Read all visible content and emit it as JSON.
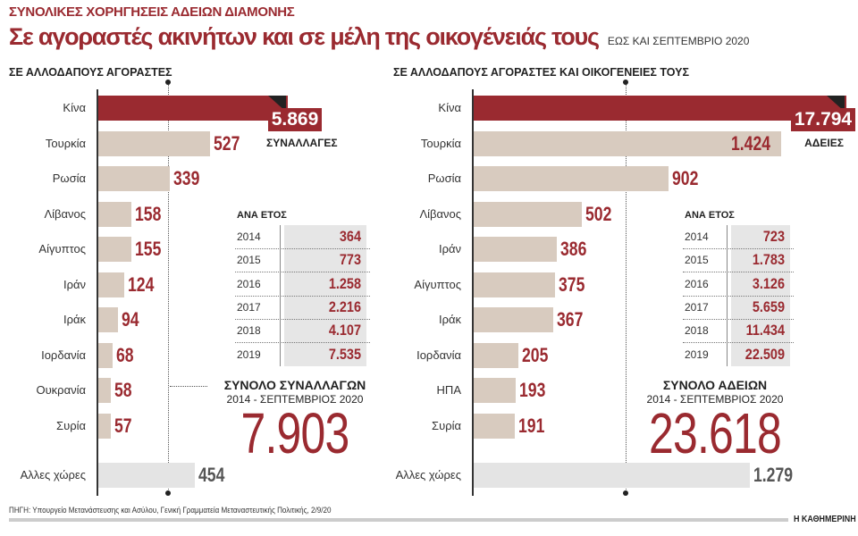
{
  "header": {
    "kicker": "ΣΥΝΟΛΙΚΕΣ ΧΟΡΗΓΗΣΕΙΣ ΑΔΕΙΩΝ ΔΙΑΜΟΝΗΣ",
    "title": "Σε αγοραστές ακινήτων και σε μέλη της οικογένειάς τους",
    "subtitle": "ΕΩΣ ΚΑΙ ΣΕΠΤΕΜΒΡΙΟ 2020"
  },
  "chart_data": [
    {
      "type": "bar",
      "orientation": "horizontal",
      "title": "ΣΕ ΑΛΛΟΔΑΠΟΥΣ ΑΓΟΡΑΣΤΕΣ",
      "unit_label": "ΣΥΝΑΛΛΑΓΕΣ",
      "categories": [
        "Κίνα",
        "Τουρκία",
        "Ρωσία",
        "Λίβανος",
        "Αίγυπτος",
        "Ιράν",
        "Ιράκ",
        "Ιορδανία",
        "Ουκρανία",
        "Συρία",
        "Αλλες χώρες"
      ],
      "values": [
        5869,
        527,
        339,
        158,
        155,
        124,
        94,
        68,
        58,
        57,
        454
      ],
      "value_labels": [
        "5.869",
        "527",
        "339",
        "158",
        "155",
        "124",
        "94",
        "68",
        "58",
        "57",
        "454"
      ],
      "by_year": {
        "header": "ΑΝΑ ΕΤΟΣ",
        "years": [
          "2014",
          "2015",
          "2016",
          "2017",
          "2018",
          "2019"
        ],
        "values": [
          "364",
          "773",
          "1.258",
          "2.216",
          "4.107",
          "7.535"
        ]
      },
      "total": {
        "label": "ΣΥΝΟΛΟ ΣΥΝΑΛΛΑΓΩΝ",
        "period": "2014 - ΣΕΠΤΕΜΒΡΙΟΣ 2020",
        "value": "7.903"
      }
    },
    {
      "type": "bar",
      "orientation": "horizontal",
      "title": "ΣΕ ΑΛΛΟΔΑΠΟΥΣ ΑΓΟΡΑΣΤΕΣ ΚΑΙ ΟΙΚΟΓΕΝΕΙΕΣ ΤΟΥΣ",
      "unit_label": "ΑΔΕΙΕΣ",
      "categories": [
        "Κίνα",
        "Τουρκία",
        "Ρωσία",
        "Λίβανος",
        "Ιράν",
        "Αίγυπτος",
        "Ιράκ",
        "Ιορδανία",
        "ΗΠΑ",
        "Συρία",
        "Αλλες χώρες"
      ],
      "values": [
        17794,
        1424,
        902,
        502,
        386,
        375,
        367,
        205,
        193,
        191,
        1279
      ],
      "value_labels": [
        "17.794",
        "1.424",
        "902",
        "502",
        "386",
        "375",
        "367",
        "205",
        "193",
        "191",
        "1.279"
      ],
      "by_year": {
        "header": "ΑΝΑ ΕΤΟΣ",
        "years": [
          "2014",
          "2015",
          "2016",
          "2017",
          "2018",
          "2019"
        ],
        "values": [
          "723",
          "1.783",
          "3.126",
          "5.659",
          "11.434",
          "22.509"
        ]
      },
      "total": {
        "label": "ΣΥΝΟΛΟ ΑΔΕΙΩΝ",
        "period": "2014 - ΣΕΠΤΕΜΒΡΙΟΣ 2020",
        "value": "23.618"
      }
    }
  ],
  "colors": {
    "highlight": "#9a2a30",
    "bar": "#d8cbbf",
    "other": "#e4e4e4",
    "corner": "#222222"
  },
  "footer": {
    "source": "ΠΗΓΗ: Υπουργείο Μετανάστευσης και Ασύλου, Γενική Γραμματεία Μεταναστευτικής Πολιτικής, 2/9/20",
    "brand": "Η ΚΑΘΗΜΕΡΙΝΗ"
  }
}
